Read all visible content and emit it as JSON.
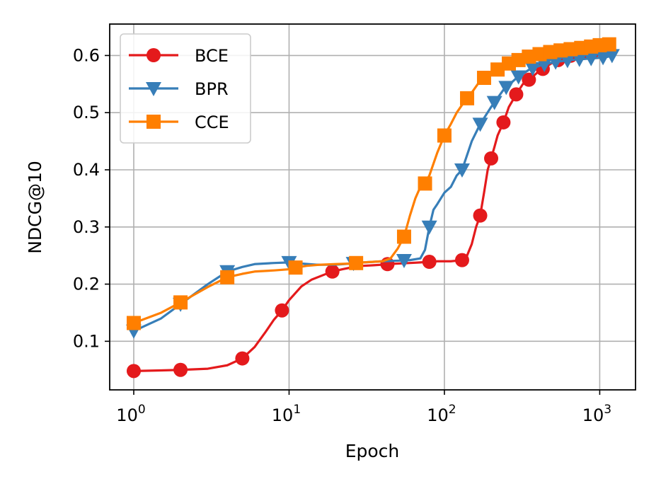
{
  "chart_data": {
    "type": "line",
    "xlabel": "Epoch",
    "ylabel": "NDCG@10",
    "xscale": "log",
    "xlim": [
      0.7,
      1700
    ],
    "ylim": [
      0.015,
      0.655
    ],
    "xticks": [
      {
        "value": 1,
        "base": "10",
        "exp": "0"
      },
      {
        "value": 10,
        "base": "10",
        "exp": "1"
      },
      {
        "value": 100,
        "base": "10",
        "exp": "2"
      },
      {
        "value": 1000,
        "base": "10",
        "exp": "3"
      }
    ],
    "yticks": [
      {
        "value": 0.1,
        "label": "0.1"
      },
      {
        "value": 0.2,
        "label": "0.2"
      },
      {
        "value": 0.3,
        "label": "0.3"
      },
      {
        "value": 0.4,
        "label": "0.4"
      },
      {
        "value": 0.5,
        "label": "0.5"
      },
      {
        "value": 0.6,
        "label": "0.6"
      }
    ],
    "grid": true,
    "legend_position": "top-left",
    "series": [
      {
        "name": "BCE",
        "color": "#e41a1c",
        "marker": "circle",
        "x": [
          1,
          1.5,
          2,
          3,
          4,
          5,
          6,
          7,
          8,
          9,
          10,
          12,
          14,
          17,
          19,
          22,
          25,
          30,
          35,
          40,
          43,
          50,
          60,
          70,
          80,
          90,
          100,
          110,
          120,
          130,
          140,
          150,
          160,
          170,
          180,
          190,
          200,
          210,
          220,
          240,
          260,
          290,
          320,
          360,
          400,
          450,
          500,
          560,
          620,
          700,
          800,
          900,
          1000,
          1100,
          1200
        ],
        "y": [
          0.048,
          0.049,
          0.05,
          0.052,
          0.058,
          0.07,
          0.09,
          0.115,
          0.138,
          0.154,
          0.172,
          0.196,
          0.208,
          0.217,
          0.222,
          0.226,
          0.229,
          0.232,
          0.233,
          0.234,
          0.235,
          0.236,
          0.237,
          0.238,
          0.239,
          0.24,
          0.24,
          0.24,
          0.241,
          0.242,
          0.25,
          0.27,
          0.3,
          0.32,
          0.36,
          0.4,
          0.42,
          0.44,
          0.46,
          0.483,
          0.51,
          0.532,
          0.55,
          0.56,
          0.571,
          0.58,
          0.588,
          0.594,
          0.598,
          0.602,
          0.605,
          0.608,
          0.61,
          0.612,
          0.614
        ],
        "markers": [
          1,
          2,
          5,
          9,
          19,
          43,
          80,
          130,
          170,
          200,
          240,
          290,
          350,
          430,
          540,
          650,
          780,
          920,
          1100
        ]
      },
      {
        "name": "BPR",
        "color": "#377eb8",
        "marker": "triangle-down",
        "x": [
          1,
          1.5,
          2,
          3,
          4,
          5,
          6,
          8,
          10,
          12,
          15,
          20,
          25,
          30,
          40,
          50,
          60,
          70,
          75,
          80,
          85,
          90,
          100,
          110,
          120,
          130,
          150,
          170,
          200,
          240,
          290,
          350,
          420,
          500,
          600,
          700,
          800,
          900,
          1000,
          1100,
          1200
        ],
        "y": [
          0.118,
          0.14,
          0.165,
          0.2,
          0.222,
          0.23,
          0.235,
          0.237,
          0.238,
          0.236,
          0.234,
          0.234,
          0.236,
          0.238,
          0.24,
          0.241,
          0.242,
          0.245,
          0.26,
          0.3,
          0.33,
          0.34,
          0.36,
          0.37,
          0.39,
          0.4,
          0.45,
          0.48,
          0.51,
          0.54,
          0.56,
          0.575,
          0.583,
          0.588,
          0.591,
          0.593,
          0.594,
          0.595,
          0.596,
          0.597,
          0.6
        ],
        "markers": [
          1,
          2,
          4,
          10,
          26,
          55,
          80,
          130,
          170,
          210,
          250,
          300,
          370,
          440,
          520,
          620,
          740,
          880,
          1050,
          1200
        ]
      },
      {
        "name": "CCE",
        "color": "#ff7f00",
        "marker": "square",
        "x": [
          1,
          1.5,
          2,
          3,
          4,
          5,
          6,
          8,
          10,
          11,
          13,
          16,
          20,
          25,
          30,
          40,
          45,
          50,
          55,
          60,
          65,
          70,
          75,
          80,
          90,
          100,
          110,
          120,
          135,
          150,
          170,
          200,
          230,
          260,
          300,
          350,
          420,
          500,
          600,
          700,
          800,
          900,
          1000,
          1100,
          1200
        ],
        "y": [
          0.132,
          0.15,
          0.168,
          0.195,
          0.212,
          0.218,
          0.222,
          0.224,
          0.226,
          0.229,
          0.232,
          0.234,
          0.235,
          0.236,
          0.238,
          0.24,
          0.245,
          0.262,
          0.283,
          0.32,
          0.35,
          0.37,
          0.376,
          0.39,
          0.43,
          0.46,
          0.48,
          0.5,
          0.52,
          0.535,
          0.556,
          0.57,
          0.578,
          0.586,
          0.592,
          0.598,
          0.603,
          0.607,
          0.61,
          0.612,
          0.614,
          0.616,
          0.618,
          0.619,
          0.62
        ],
        "markers": [
          1,
          2,
          4,
          11,
          27,
          55,
          75,
          100,
          140,
          180,
          220,
          260,
          300,
          350,
          410,
          480,
          560,
          650,
          760,
          880,
          1000,
          1150
        ]
      }
    ]
  }
}
